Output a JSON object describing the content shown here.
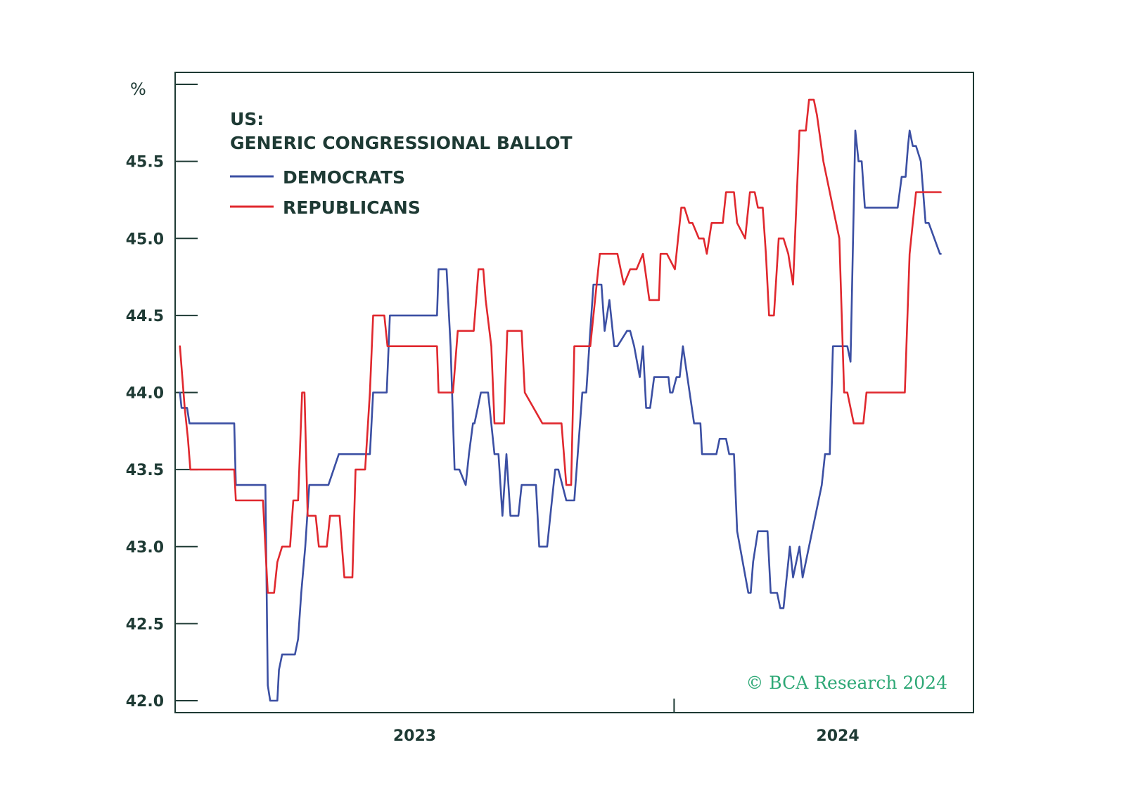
{
  "chart_data": {
    "type": "line",
    "title": [
      "US:",
      "GENERIC CONGRESSIONAL BALLOT"
    ],
    "ylabel": "%",
    "ylim": [
      42.0,
      46.0
    ],
    "xlim": [
      0,
      100
    ],
    "yticks": [
      "45.5",
      "45.0",
      "44.5",
      "44.0",
      "43.5",
      "43.0",
      "42.5",
      "42.0"
    ],
    "ytick_values": [
      45.5,
      45.0,
      44.5,
      44.0,
      43.5,
      43.0,
      42.5,
      42.0
    ],
    "xticks": [
      {
        "label": "2023",
        "x": 30
      },
      {
        "label": "2024",
        "x": 83
      }
    ],
    "year_divider_x": 62.5,
    "legend_placement": "top-left",
    "copyright": "© BCA Research 2024",
    "colors": {
      "democrats": "#3b4fa3",
      "republicans": "#e0282e",
      "axis": "#1e3a34",
      "copyright": "#2ea876"
    },
    "series": [
      {
        "name": "DEMOCRATS",
        "color_key": "democrats",
        "x": [
          0.6,
          0.8,
          1.0,
          1.5,
          1.8,
          2.2,
          7.4,
          7.6,
          11.3,
          11.6,
          11.9,
          12.2,
          12.8,
          13.0,
          13.4,
          14.0,
          15.0,
          15.4,
          15.8,
          16.3,
          16.8,
          17.2,
          17.6,
          18.3,
          19.2,
          20.5,
          24.4,
          24.8,
          26.5,
          26.9,
          28.8,
          29.0,
          29.2,
          32.8,
          33.0,
          34.0,
          34.5,
          35.0,
          35.6,
          36.4,
          36.8,
          37.3,
          37.5,
          38.3,
          39.2,
          40.0,
          40.5,
          41.0,
          41.5,
          42.0,
          42.5,
          43.0,
          43.4,
          43.8,
          45.2,
          45.6,
          46.2,
          46.6,
          47.0,
          47.6,
          48.0,
          49.0,
          49.5,
          50.0,
          51.0,
          51.5,
          52.0,
          52.4,
          53.0,
          53.4,
          53.8,
          54.4,
          55.0,
          55.4,
          56.6,
          57.0,
          57.5,
          58.2,
          58.6,
          59.0,
          59.5,
          60.0,
          61.5,
          61.8,
          62.0,
          62.3,
          62.8,
          63.2,
          63.6,
          65.0,
          65.2,
          65.8,
          66.0,
          67.4,
          67.8,
          68.2,
          68.6,
          69.0,
          69.4,
          69.7,
          70.0,
          70.4,
          71.8,
          72.1,
          72.4,
          73.0,
          73.4,
          73.8,
          74.2,
          74.6,
          75.0,
          75.4,
          75.8,
          76.2,
          76.6,
          77.0,
          77.4,
          78.2,
          78.6,
          81.0,
          81.4,
          82.0,
          82.4,
          83.4,
          83.8,
          84.2,
          84.6,
          85.2,
          85.6,
          86.0,
          86.4,
          90.0,
          90.5,
          91.0,
          91.5,
          91.8,
          92.0,
          92.4,
          92.8,
          93.4,
          94.0,
          94.4,
          95.8,
          95.9
        ],
        "y": [
          44.0,
          43.9,
          43.9,
          43.9,
          43.8,
          43.8,
          43.8,
          43.4,
          43.4,
          42.1,
          42.0,
          42.0,
          42.0,
          42.2,
          42.3,
          42.3,
          42.3,
          42.4,
          42.7,
          43.0,
          43.4,
          43.4,
          43.4,
          43.4,
          43.4,
          43.6,
          43.6,
          44.0,
          44.0,
          44.5,
          44.5,
          44.5,
          44.5,
          44.5,
          44.8,
          44.8,
          44.3,
          43.5,
          43.5,
          43.4,
          43.6,
          43.8,
          43.8,
          44.0,
          44.0,
          43.6,
          43.6,
          43.2,
          43.6,
          43.2,
          43.2,
          43.2,
          43.4,
          43.4,
          43.4,
          43.0,
          43.0,
          43.0,
          43.2,
          43.5,
          43.5,
          43.3,
          43.3,
          43.3,
          44.0,
          44.0,
          44.4,
          44.7,
          44.7,
          44.7,
          44.4,
          44.6,
          44.3,
          44.3,
          44.4,
          44.4,
          44.3,
          44.1,
          44.3,
          43.9,
          43.9,
          44.1,
          44.1,
          44.1,
          44.0,
          44.0,
          44.1,
          44.1,
          44.3,
          43.8,
          43.8,
          43.8,
          43.6,
          43.6,
          43.6,
          43.7,
          43.7,
          43.7,
          43.6,
          43.6,
          43.6,
          43.1,
          42.7,
          42.7,
          42.9,
          43.1,
          43.1,
          43.1,
          43.1,
          42.7,
          42.7,
          42.7,
          42.6,
          42.6,
          42.8,
          43.0,
          42.8,
          43.0,
          42.8,
          43.4,
          43.6,
          43.6,
          44.3,
          44.3,
          44.3,
          44.3,
          44.2,
          45.7,
          45.5,
          45.5,
          45.2,
          45.2,
          45.2,
          45.4,
          45.4,
          45.6,
          45.7,
          45.6,
          45.6,
          45.5,
          45.1,
          45.1,
          44.9,
          44.9
        ],
        "note": "Estimated from gridlines; x is a relative time position (0 = left frame, 100 = right frame)."
      },
      {
        "name": "REPUBLICANS",
        "color_key": "republicans",
        "x": [
          0.6,
          0.9,
          1.2,
          1.6,
          1.9,
          2.4,
          7.4,
          7.6,
          11.0,
          11.2,
          11.6,
          12.4,
          12.8,
          13.4,
          14.4,
          14.8,
          15.4,
          15.9,
          16.2,
          16.6,
          17.0,
          17.6,
          18.0,
          19.0,
          19.4,
          20.0,
          20.6,
          21.2,
          21.6,
          22.2,
          22.6,
          23.8,
          24.4,
          24.8,
          25.6,
          26.2,
          26.6,
          27.6,
          28.0,
          29.0,
          29.4,
          32.8,
          33.0,
          34.0,
          34.8,
          35.4,
          35.8,
          37.4,
          38.0,
          38.6,
          38.9,
          39.6,
          40.0,
          41.2,
          41.6,
          43.4,
          43.8,
          46.0,
          46.4,
          46.8,
          48.4,
          49.0,
          49.6,
          50.0,
          52.0,
          52.4,
          53.2,
          54.8,
          55.4,
          56.2,
          57.0,
          57.4,
          57.8,
          58.6,
          59.4,
          59.8,
          60.6,
          60.8,
          61.2,
          61.6,
          62.6,
          63.4,
          63.8,
          64.4,
          64.8,
          65.6,
          66.2,
          66.6,
          67.2,
          67.8,
          68.6,
          69.0,
          70.0,
          70.4,
          71.4,
          71.8,
          72.0,
          72.6,
          73.0,
          73.6,
          74.0,
          74.4,
          75.0,
          75.6,
          76.2,
          76.8,
          77.4,
          78.2,
          79.0,
          79.4,
          80.0,
          80.4,
          81.2,
          82.0,
          83.2,
          83.8,
          84.2,
          84.6,
          85.0,
          85.6,
          86.2,
          86.6,
          86.9,
          87.2,
          87.6,
          88.0,
          88.4,
          89.6,
          90.0,
          91.4,
          92.0,
          92.4,
          92.8,
          93.4,
          94.0,
          94.6,
          95.0,
          95.9
        ],
        "y": [
          44.3,
          44.1,
          43.9,
          43.7,
          43.5,
          43.5,
          43.5,
          43.3,
          43.3,
          43.1,
          42.7,
          42.7,
          42.9,
          43.0,
          43.0,
          43.3,
          43.3,
          44.0,
          44.0,
          43.2,
          43.2,
          43.2,
          43.0,
          43.0,
          43.2,
          43.2,
          43.2,
          42.8,
          42.8,
          42.8,
          43.5,
          43.5,
          44.0,
          44.5,
          44.5,
          44.5,
          44.3,
          44.3,
          44.3,
          44.3,
          44.3,
          44.3,
          44.0,
          44.0,
          44.0,
          44.4,
          44.4,
          44.4,
          44.8,
          44.8,
          44.6,
          44.3,
          43.8,
          43.8,
          44.4,
          44.4,
          44.0,
          43.8,
          43.8,
          43.8,
          43.8,
          43.4,
          43.4,
          44.3,
          44.3,
          44.5,
          44.9,
          44.9,
          44.9,
          44.7,
          44.8,
          44.8,
          44.8,
          44.9,
          44.6,
          44.6,
          44.6,
          44.9,
          44.9,
          44.9,
          44.8,
          45.2,
          45.2,
          45.1,
          45.1,
          45.0,
          45.0,
          44.9,
          45.1,
          45.1,
          45.1,
          45.3,
          45.3,
          45.1,
          45.0,
          45.2,
          45.3,
          45.3,
          45.2,
          45.2,
          44.9,
          44.5,
          44.5,
          45.0,
          45.0,
          44.9,
          44.7,
          45.7,
          45.7,
          45.9,
          45.9,
          45.8,
          45.5,
          45.3,
          45.0,
          44.0,
          44.0,
          43.9,
          43.8,
          43.8,
          43.8,
          44.0,
          44.0,
          44.0,
          44.0,
          44.0,
          44.0,
          44.0,
          44.0,
          44.0,
          44.9,
          45.1,
          45.3,
          45.3,
          45.3,
          45.3,
          45.3,
          45.3
        ],
        "note": "Estimated from gridlines; x is a relative time position (0 = left frame, 100 = right frame)."
      }
    ]
  }
}
